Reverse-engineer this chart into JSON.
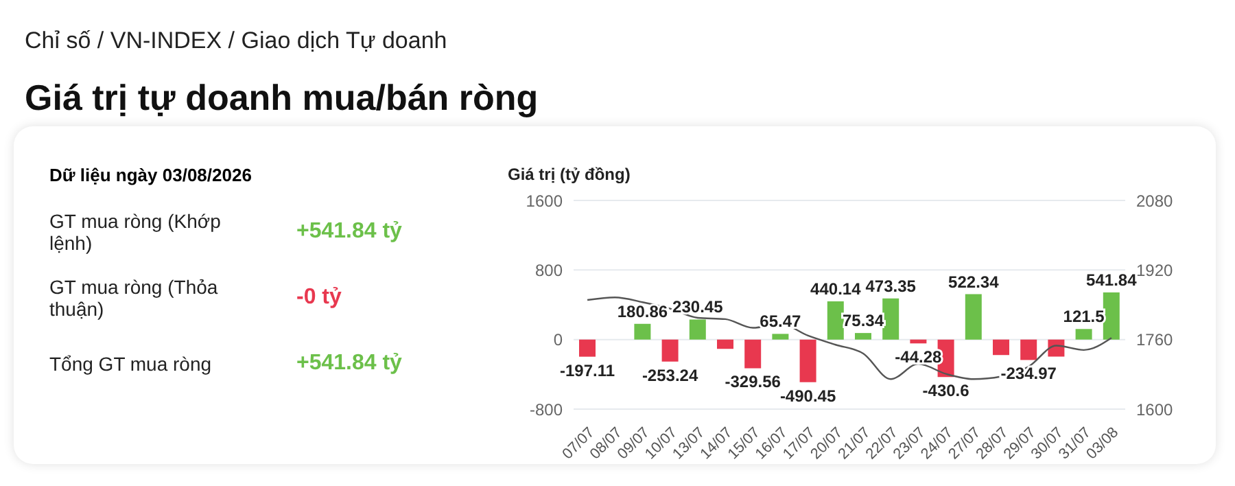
{
  "chart_data": [
    {
      "type": "other",
      "title": "Dữ liệu ngày 03/08/2026",
      "categories": [
        "GT mua ròng (Khớp lệnh)",
        "GT mua ròng (Thỏa thuận)",
        "Tổng GT mua ròng"
      ],
      "value_labels": [
        "+541.84 tỷ",
        "-0 tỷ",
        "+541.84 tỷ"
      ],
      "colors": [
        "#6cc04a",
        "#e8384f",
        "#6cc04a"
      ]
    },
    {
      "type": "bar",
      "title": "Giá trị tự doanh mua/bán ròng",
      "annotations": [
        "Chỉ số / VN-INDEX / Giao dịch Tự doanh"
      ],
      "ylabel": "Giá trị (tỷ đồng)",
      "categories": [
        "07/07",
        "08/07",
        "09/07",
        "10/07",
        "13/07",
        "14/07",
        "15/07",
        "16/07",
        "17/07",
        "20/07",
        "21/07",
        "22/07",
        "23/07",
        "24/07",
        "27/07",
        "28/07",
        "29/07",
        "30/07",
        "31/07",
        "03/08"
      ],
      "ylim": [
        -800,
        1600
      ],
      "yticks": [
        -800,
        0,
        800,
        1600
      ],
      "y2lim": [
        1600,
        2080
      ],
      "y2ticks": [
        1600,
        1760,
        1920,
        2080
      ],
      "grid": "y",
      "series": [
        {
          "type": "bar",
          "values": [
            -197.11,
            null,
            180.86,
            -253.24,
            230.45,
            -107,
            -329.56,
            65.47,
            -490.45,
            440.14,
            75.34,
            473.35,
            -44.28,
            -430.6,
            522.34,
            -178,
            -234.97,
            -196,
            121.5,
            541.84
          ],
          "value_labels": [
            "-197.11",
            null,
            "180.86",
            "-253.24",
            "230.45",
            null,
            "-329.56",
            "65.47",
            "-490.45",
            "440.14",
            "75.34",
            "473.35",
            "-44.28",
            "-430.6",
            "522.34",
            null,
            "-234.97",
            null,
            "121.5",
            "541.84"
          ],
          "colors": [
            "#e8384f",
            "#6cc04a",
            "#6cc04a",
            "#e8384f",
            "#6cc04a",
            "#e8384f",
            "#e8384f",
            "#6cc04a",
            "#e8384f",
            "#6cc04a",
            "#6cc04a",
            "#6cc04a",
            "#e8384f",
            "#e8384f",
            "#6cc04a",
            "#e8384f",
            "#e8384f",
            "#e8384f",
            "#6cc04a",
            "#6cc04a"
          ]
        },
        {
          "type": "line",
          "axis": "y2",
          "color": "#555555",
          "marker": "none",
          "values": [
            1851,
            1857,
            1846,
            1831,
            1810,
            1807,
            1787,
            1796,
            1769,
            1748,
            1728,
            1669,
            1704,
            1681,
            1669,
            1675,
            1698,
            1746,
            1736,
            1764
          ]
        }
      ]
    }
  ]
}
